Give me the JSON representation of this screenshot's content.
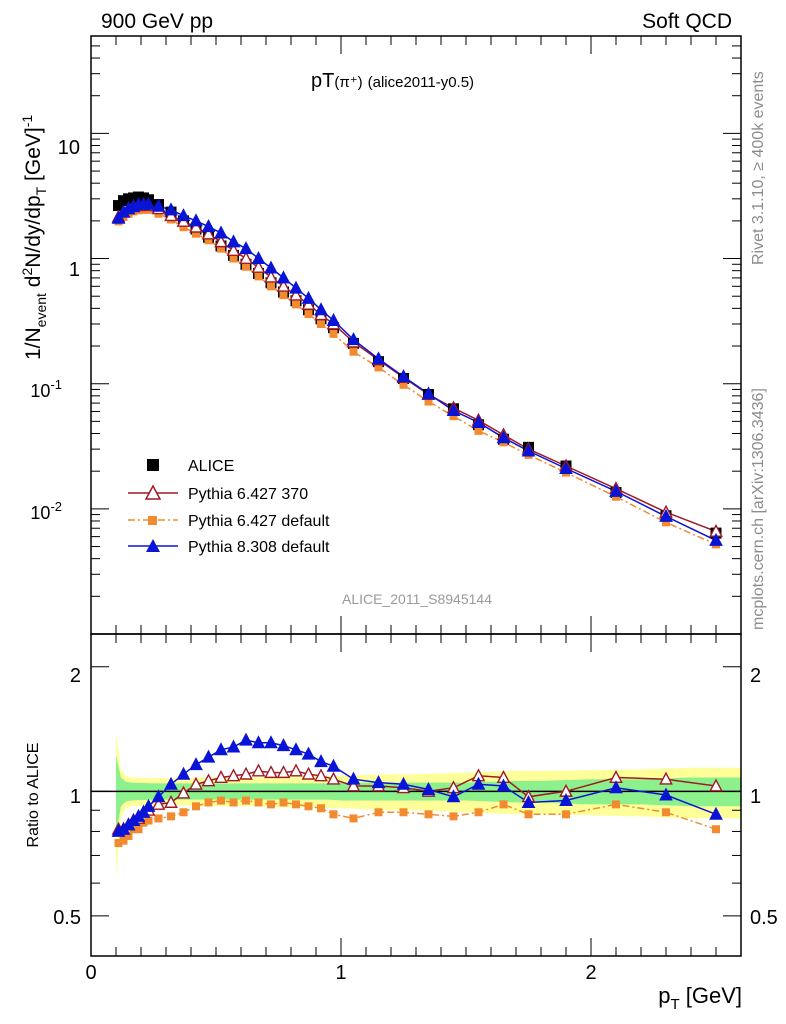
{
  "header": {
    "left": "900 GeV pp",
    "right": "Soft QCD"
  },
  "side_labels": {
    "rivet": "Rivet 3.1.10, ≥ 400k events",
    "mcplots": "mcplots.cern.ch [arXiv:1306.3436]"
  },
  "watermark": "ALICE_2011_S8945144",
  "plot_title": {
    "main": "pT",
    "sub": "(π⁺)",
    "tag": "(alice2011-y0.5)"
  },
  "axis_text": {
    "ylabel_main": "1/N",
    "ylabel_main_sub": "event",
    "ylabel_main_mid": " d",
    "ylabel_main_sup": "2",
    "ylabel_main_rest": "N/dy/dp",
    "ylabel_main_sub2": "T",
    "ylabel_main_unit": " [GeV]",
    "ylabel_main_unit_sup": "-1",
    "ylabel_ratio": "Ratio to ALICE",
    "xlabel": "p",
    "xlabel_sub": "T",
    "xlabel_unit": " [GeV]"
  },
  "tick_labels": {
    "x": [
      "0",
      "1",
      "2"
    ],
    "main_y": [
      {
        "base": "10",
        "exp": "-2"
      },
      {
        "base": "10",
        "exp": "-1"
      },
      {
        "base": "1",
        "exp": ""
      },
      {
        "base": "10",
        "exp": ""
      }
    ],
    "ratio_y": [
      "0.5",
      "1",
      "2"
    ]
  },
  "legend": [
    "ALICE",
    "Pythia 6.427 370",
    "Pythia 6.427 default",
    "Pythia 8.308 default"
  ],
  "colors": {
    "alice": "#000000",
    "p6_370": "#a01a26",
    "p6_def": "#f28a30",
    "p8_def": "#0a14d6",
    "band_inner": "#8cf08c",
    "band_outer": "#ffff99"
  },
  "chart_data": [
    {
      "type": "line",
      "panel": "main",
      "yscale": "log",
      "xlim": [
        0,
        2.6
      ],
      "ylim": [
        0.001,
        60
      ],
      "x": [
        0.11,
        0.13,
        0.15,
        0.17,
        0.19,
        0.21,
        0.23,
        0.27,
        0.32,
        0.37,
        0.42,
        0.47,
        0.52,
        0.57,
        0.62,
        0.67,
        0.72,
        0.77,
        0.82,
        0.87,
        0.92,
        0.97,
        1.05,
        1.15,
        1.25,
        1.35,
        1.45,
        1.55,
        1.65,
        1.75,
        1.9,
        2.1,
        2.3,
        2.5
      ],
      "series": [
        {
          "name": "ALICE",
          "marker": "square",
          "values": [
            2.65,
            2.9,
            3.0,
            3.05,
            3.1,
            3.05,
            2.95,
            2.7,
            2.35,
            2.0,
            1.72,
            1.48,
            1.26,
            1.06,
            0.9,
            0.76,
            0.64,
            0.54,
            0.46,
            0.39,
            0.33,
            0.28,
            0.21,
            0.15,
            0.11,
            0.082,
            0.063,
            0.047,
            0.036,
            0.031,
            0.022,
            0.0135,
            0.0088,
            0.0064
          ]
        },
        {
          "name": "Pythia 6.427 370",
          "marker": "open-triangle",
          "values": [
            2.15,
            2.35,
            2.5,
            2.6,
            2.65,
            2.7,
            2.65,
            2.5,
            2.2,
            1.98,
            1.78,
            1.57,
            1.36,
            1.16,
            1.0,
            0.85,
            0.71,
            0.6,
            0.51,
            0.43,
            0.355,
            0.3,
            0.215,
            0.155,
            0.112,
            0.082,
            0.064,
            0.051,
            0.039,
            0.03,
            0.022,
            0.0145,
            0.0094,
            0.0066
          ]
        },
        {
          "name": "Pythia 6.427 default",
          "marker": "filled-square",
          "values": [
            1.98,
            2.15,
            2.28,
            2.38,
            2.43,
            2.45,
            2.45,
            2.28,
            2.05,
            1.78,
            1.58,
            1.4,
            1.2,
            1.0,
            0.86,
            0.72,
            0.6,
            0.51,
            0.43,
            0.36,
            0.3,
            0.25,
            0.18,
            0.135,
            0.098,
            0.072,
            0.055,
            0.042,
            0.034,
            0.027,
            0.0195,
            0.0125,
            0.0078,
            0.0052
          ]
        },
        {
          "name": "Pythia 8.308 default",
          "marker": "filled-triangle",
          "values": [
            2.1,
            2.35,
            2.5,
            2.6,
            2.7,
            2.7,
            2.72,
            2.62,
            2.45,
            2.2,
            2.0,
            1.8,
            1.6,
            1.36,
            1.2,
            1.0,
            0.84,
            0.7,
            0.58,
            0.48,
            0.39,
            0.32,
            0.225,
            0.158,
            0.114,
            0.083,
            0.061,
            0.049,
            0.037,
            0.029,
            0.021,
            0.0138,
            0.0087,
            0.0056
          ]
        }
      ]
    },
    {
      "type": "line",
      "panel": "ratio",
      "yscale": "log",
      "ylim": [
        0.4,
        2.4
      ],
      "band_x": [
        0.1,
        0.12,
        0.14,
        0.16,
        0.25,
        0.3,
        0.35,
        0.45,
        0.55,
        0.65,
        0.75,
        0.85,
        0.95,
        1.0,
        1.1,
        1.2,
        1.3,
        1.4,
        1.5,
        1.6,
        1.7,
        1.8,
        2.0,
        2.2,
        2.4,
        2.6
      ],
      "band_inner": [
        0.22,
        0.08,
        0.055,
        0.05,
        0.045,
        0.045,
        0.045,
        0.045,
        0.045,
        0.045,
        0.045,
        0.045,
        0.045,
        0.05,
        0.05,
        0.05,
        0.05,
        0.05,
        0.05,
        0.055,
        0.06,
        0.06,
        0.07,
        0.07,
        0.08,
        0.08
      ],
      "band_outer": [
        0.38,
        0.13,
        0.09,
        0.08,
        0.075,
        0.075,
        0.075,
        0.08,
        0.08,
        0.08,
        0.085,
        0.085,
        0.09,
        0.09,
        0.095,
        0.1,
        0.1,
        0.105,
        0.11,
        0.115,
        0.12,
        0.12,
        0.125,
        0.13,
        0.14,
        0.14
      ],
      "series": [
        {
          "name": "Pythia 6.427 370",
          "values": [
            0.81,
            0.81,
            0.83,
            0.85,
            0.86,
            0.89,
            0.9,
            0.93,
            0.94,
            0.99,
            1.04,
            1.06,
            1.08,
            1.09,
            1.1,
            1.12,
            1.11,
            1.11,
            1.12,
            1.1,
            1.09,
            1.07,
            1.03,
            1.03,
            1.02,
            1.0,
            1.02,
            1.09,
            1.08,
            0.97,
            1.0,
            1.08,
            1.07,
            1.03
          ]
        },
        {
          "name": "Pythia 6.427 default",
          "values": [
            0.75,
            0.76,
            0.78,
            0.81,
            0.81,
            0.84,
            0.85,
            0.86,
            0.87,
            0.89,
            0.92,
            0.94,
            0.95,
            0.94,
            0.95,
            0.94,
            0.93,
            0.94,
            0.93,
            0.92,
            0.91,
            0.88,
            0.86,
            0.89,
            0.89,
            0.88,
            0.87,
            0.89,
            0.93,
            0.88,
            0.88,
            0.93,
            0.89,
            0.81
          ]
        },
        {
          "name": "Pythia 8.308 default",
          "values": [
            0.8,
            0.81,
            0.83,
            0.85,
            0.87,
            0.89,
            0.92,
            0.97,
            1.04,
            1.1,
            1.16,
            1.21,
            1.26,
            1.28,
            1.33,
            1.31,
            1.31,
            1.29,
            1.26,
            1.23,
            1.18,
            1.15,
            1.07,
            1.05,
            1.04,
            1.01,
            0.97,
            1.04,
            1.03,
            0.94,
            0.95,
            1.02,
            0.98,
            0.88
          ]
        }
      ]
    }
  ]
}
